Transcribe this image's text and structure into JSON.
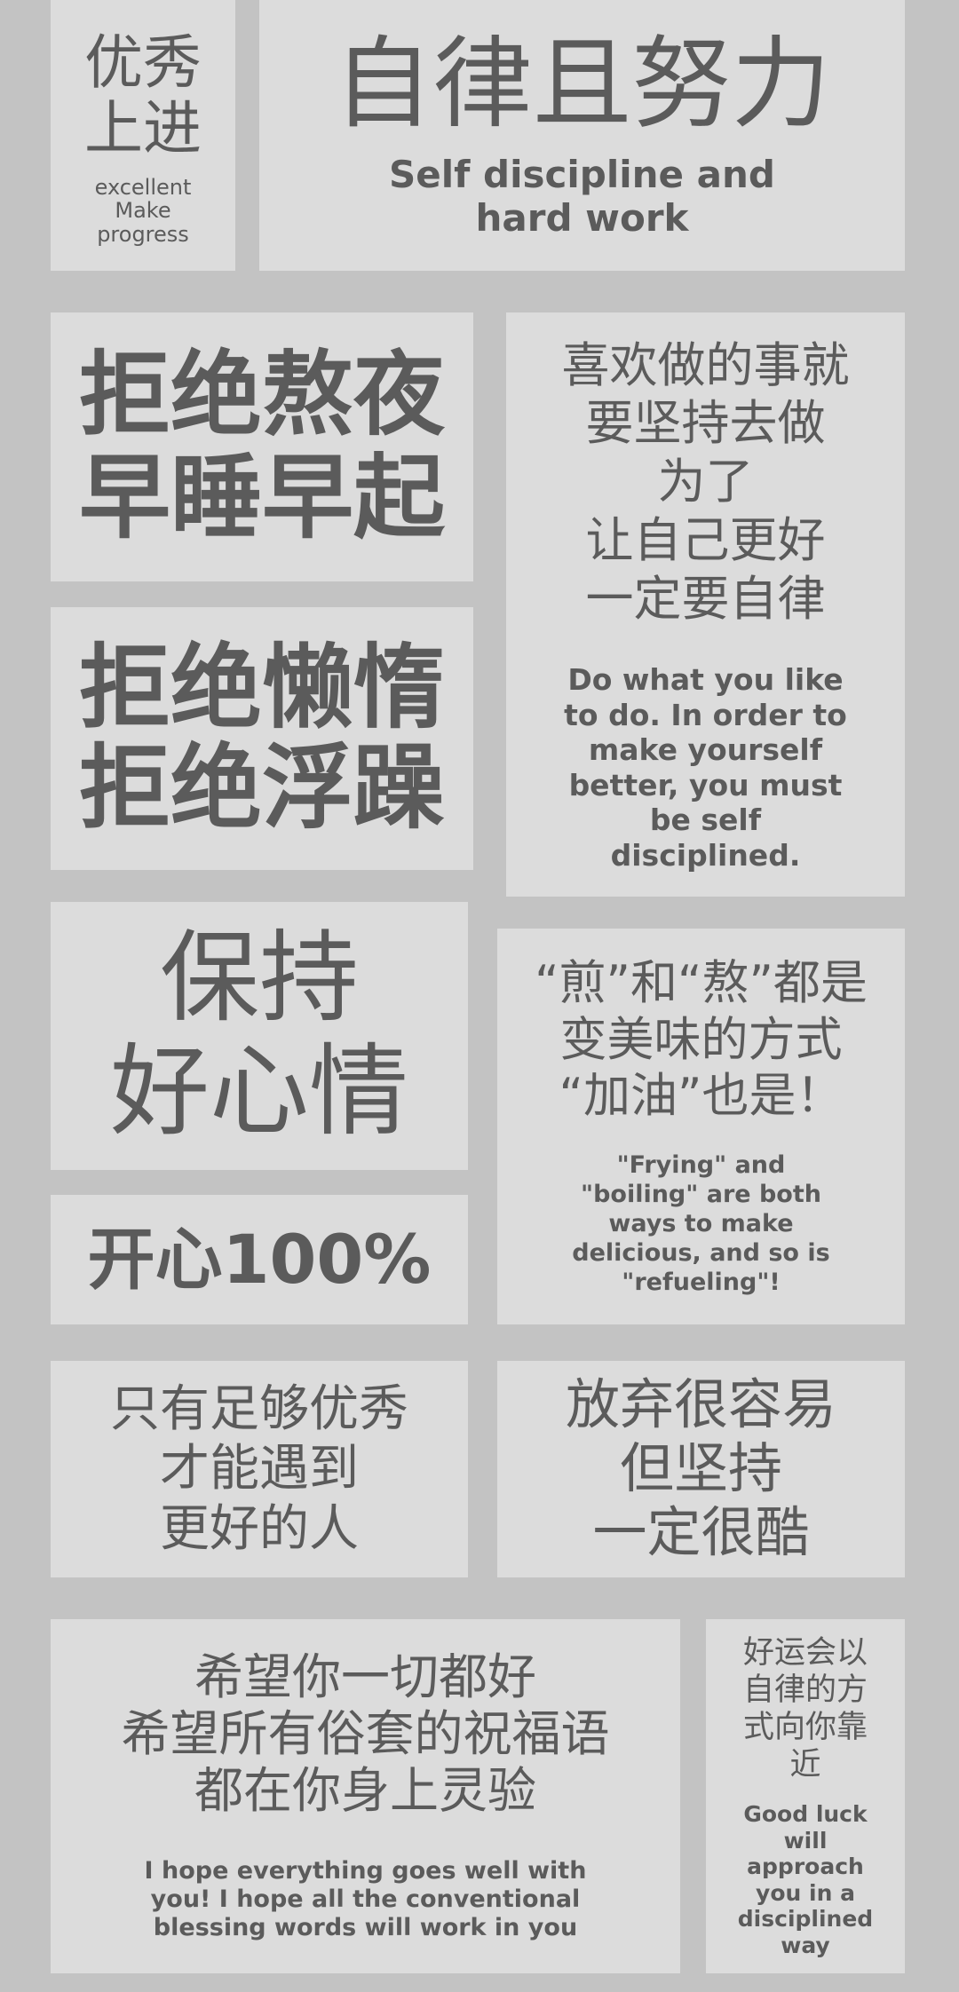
{
  "card1": {
    "cn": [
      "优秀",
      "上进"
    ],
    "en": [
      "excellent",
      "Make",
      "progress"
    ]
  },
  "card2": {
    "cn": "自律且努力",
    "en": [
      "Self discipline and",
      "hard work"
    ]
  },
  "card3": {
    "cn": [
      "拒绝熬夜",
      "早睡早起"
    ]
  },
  "card4": {
    "cn": [
      "喜欢做的事就",
      "要坚持去做",
      "为了",
      "让自己更好",
      "一定要自律"
    ],
    "en": [
      "Do what you like",
      "to do. In order to",
      "make yourself",
      "better, you must",
      "be self",
      "disciplined."
    ]
  },
  "card5": {
    "cn": [
      "拒绝懒惰",
      "拒绝浮躁"
    ]
  },
  "card6": {
    "cn": [
      "保持",
      "好心情"
    ]
  },
  "card7": {
    "cn": [
      "“煎”和“熬”都是",
      "变美味的方式",
      "“加油”也是！"
    ],
    "en": [
      "\"Frying\" and",
      "\"boiling\" are both",
      "ways to make",
      "delicious, and so is",
      "\"refueling\"!"
    ]
  },
  "card8": {
    "cn": "开心100%"
  },
  "card9": {
    "cn": [
      "只有足够优秀",
      "才能遇到",
      "更好的人"
    ]
  },
  "card10": {
    "cn": [
      "放弃很容易",
      "但坚持",
      "一定很酷"
    ]
  },
  "card11": {
    "cn": [
      "希望你一切都好",
      "希望所有俗套的祝福语",
      "都在你身上灵验"
    ],
    "en": [
      "I hope everything goes well with",
      "you! I hope all the conventional",
      "blessing words will work in you"
    ]
  },
  "card12": {
    "cn": [
      "好运会以",
      "自律的方",
      "式向你靠",
      "近"
    ],
    "en": [
      "Good luck",
      "will",
      "approach",
      "you in a",
      "disciplined",
      "way"
    ]
  }
}
